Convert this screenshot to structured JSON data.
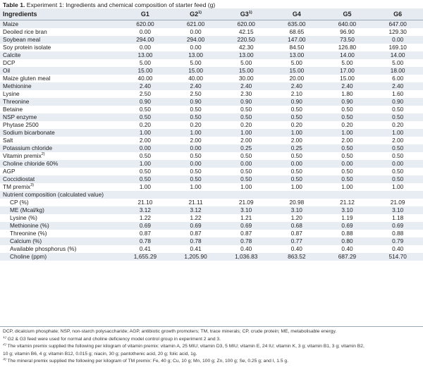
{
  "caption": {
    "label": "Table 1.",
    "text": " Experiment 1: Ingredients and chemical composition of starter feed (g)"
  },
  "columns": [
    {
      "label": "Ingredients",
      "sup": ""
    },
    {
      "label": "G1",
      "sup": ""
    },
    {
      "label": "G2",
      "sup": "1)"
    },
    {
      "label": "G3",
      "sup": "1)"
    },
    {
      "label": "G4",
      "sup": ""
    },
    {
      "label": "G5",
      "sup": ""
    },
    {
      "label": "G6",
      "sup": ""
    }
  ],
  "rows": [
    {
      "label": "Maize",
      "sup": "",
      "indent": false,
      "values": [
        "620.00",
        "621.00",
        "620.00",
        "635.00",
        "640.00",
        "647.00"
      ]
    },
    {
      "label": "Deoiled rice bran",
      "sup": "",
      "indent": false,
      "values": [
        "0.00",
        "0.00",
        "42.15",
        "68.65",
        "96.90",
        "129.30"
      ]
    },
    {
      "label": "Soybean meal",
      "sup": "",
      "indent": false,
      "values": [
        "294.00",
        "294.00",
        "220.50",
        "147.00",
        "73.50",
        "0.00"
      ]
    },
    {
      "label": "Soy protein isolate",
      "sup": "",
      "indent": false,
      "values": [
        "0.00",
        "0.00",
        "42.30",
        "84.50",
        "126.80",
        "169.10"
      ]
    },
    {
      "label": "Calcite",
      "sup": "",
      "indent": false,
      "values": [
        "13.00",
        "13.00",
        "13.00",
        "13.00",
        "14.00",
        "14.00"
      ]
    },
    {
      "label": "DCP",
      "sup": "",
      "indent": false,
      "values": [
        "5.00",
        "5.00",
        "5.00",
        "5.00",
        "5.00",
        "5.00"
      ]
    },
    {
      "label": "Oil",
      "sup": "",
      "indent": false,
      "values": [
        "15.00",
        "15.00",
        "15.00",
        "15.00",
        "17.00",
        "18.00"
      ]
    },
    {
      "label": "Maize gluten meal",
      "sup": "",
      "indent": false,
      "values": [
        "40.00",
        "40.00",
        "30.00",
        "20.00",
        "15.00",
        "6.00"
      ]
    },
    {
      "label": "Methionine",
      "sup": "",
      "indent": false,
      "values": [
        "2.40",
        "2.40",
        "2.40",
        "2.40",
        "2.40",
        "2.40"
      ]
    },
    {
      "label": "Lysine",
      "sup": "",
      "indent": false,
      "values": [
        "2.50",
        "2.50",
        "2.30",
        "2.10",
        "1.80",
        "1.60"
      ]
    },
    {
      "label": "Threonine",
      "sup": "",
      "indent": false,
      "values": [
        "0.90",
        "0.90",
        "0.90",
        "0.90",
        "0.90",
        "0.90"
      ]
    },
    {
      "label": "Betaine",
      "sup": "",
      "indent": false,
      "values": [
        "0.50",
        "0.50",
        "0.50",
        "0.50",
        "0.50",
        "0.50"
      ]
    },
    {
      "label": "NSP enzyme",
      "sup": "",
      "indent": false,
      "values": [
        "0.50",
        "0.50",
        "0.50",
        "0.50",
        "0.50",
        "0.50"
      ]
    },
    {
      "label": "Phytase 2500",
      "sup": "",
      "indent": false,
      "values": [
        "0.20",
        "0.20",
        "0.20",
        "0.20",
        "0.20",
        "0.20"
      ]
    },
    {
      "label": "Sodium bicarbonate",
      "sup": "",
      "indent": false,
      "values": [
        "1.00",
        "1.00",
        "1.00",
        "1.00",
        "1.00",
        "1.00"
      ]
    },
    {
      "label": "Salt",
      "sup": "",
      "indent": false,
      "values": [
        "2.00",
        "2.00",
        "2.00",
        "2.00",
        "2.00",
        "2.00"
      ]
    },
    {
      "label": "Potassium chloride",
      "sup": "",
      "indent": false,
      "values": [
        "0.00",
        "0.00",
        "0.25",
        "0.25",
        "0.50",
        "0.50"
      ]
    },
    {
      "label": "Vitamin premix",
      "sup": "2)",
      "indent": false,
      "values": [
        "0.50",
        "0.50",
        "0.50",
        "0.50",
        "0.50",
        "0.50"
      ]
    },
    {
      "label": "Choline chloride 60%",
      "sup": "",
      "indent": false,
      "values": [
        "1.00",
        "0.00",
        "0.00",
        "0.00",
        "0.00",
        "0.00"
      ]
    },
    {
      "label": "AGP",
      "sup": "",
      "indent": false,
      "values": [
        "0.50",
        "0.50",
        "0.50",
        "0.50",
        "0.50",
        "0.50"
      ]
    },
    {
      "label": "Coccidiostat",
      "sup": "",
      "indent": false,
      "values": [
        "0.50",
        "0.50",
        "0.50",
        "0.50",
        "0.50",
        "0.50"
      ]
    },
    {
      "label": "TM premix",
      "sup": "3)",
      "indent": false,
      "values": [
        "1.00",
        "1.00",
        "1.00",
        "1.00",
        "1.00",
        "1.00"
      ]
    },
    {
      "label": "Nutrient composition (calculated value)",
      "sup": "",
      "indent": false,
      "values": [
        "",
        "",
        "",
        "",
        "",
        ""
      ]
    },
    {
      "label": "CP (%)",
      "sup": "",
      "indent": true,
      "values": [
        "21.10",
        "21.11",
        "21.09",
        "20.98",
        "21.12",
        "21.09"
      ]
    },
    {
      "label": "ME (Mcal/kg)",
      "sup": "",
      "indent": true,
      "values": [
        "3.12",
        "3.12",
        "3.10",
        "3.10",
        "3.10",
        "3.10"
      ]
    },
    {
      "label": "Lysine (%)",
      "sup": "",
      "indent": true,
      "values": [
        "1.22",
        "1.22",
        "1.21",
        "1.20",
        "1.19",
        "1.18"
      ]
    },
    {
      "label": "Methionine (%)",
      "sup": "",
      "indent": true,
      "values": [
        "0.69",
        "0.69",
        "0.69",
        "0.68",
        "0.69",
        "0.69"
      ]
    },
    {
      "label": "Threonine (%)",
      "sup": "",
      "indent": true,
      "values": [
        "0.87",
        "0.87",
        "0.87",
        "0.87",
        "0.88",
        "0.88"
      ]
    },
    {
      "label": "Calcium (%)",
      "sup": "",
      "indent": true,
      "values": [
        "0.78",
        "0.78",
        "0.78",
        "0.77",
        "0.80",
        "0.79"
      ]
    },
    {
      "label": "Available phosphorus (%)",
      "sup": "",
      "indent": true,
      "values": [
        "0.41",
        "0.41",
        "0.40",
        "0.40",
        "0.40",
        "0.40"
      ]
    },
    {
      "label": "Choline (ppm)",
      "sup": "",
      "indent": true,
      "values": [
        "1,655.29",
        "1,205.90",
        "1,036.83",
        "863.52",
        "687.29",
        "514.70"
      ]
    }
  ],
  "notes": [
    {
      "sup": "",
      "text": "DCP, dicalcium phosphate; NSP, non-starch polysaccharide; AGP, antibiotic growth promoters; TM, trace minerals; CP, crude protein; ME, metabolisable energy."
    },
    {
      "sup": "1)",
      "text": " G2 & G3 feed were used for normal and choline deficiency model control group in experiment 2 and 3."
    },
    {
      "sup": "2)",
      "text": " The vitamin premix supplied the following per kilogram of vitamin premix: vitamin A, 25 MIU; vitamin D3, 5 MIU; vitamin E, 24 IU; vitamin K, 3 g; vitamin B1, 3 g; vitamin B2,"
    },
    {
      "sup": "",
      "text": "10 g; vitamin B6, 4 g; vitamin B12, 0.015 g; niacin, 30 g; pantothenic acid, 20 g; folic acid, 1g."
    },
    {
      "sup": "3)",
      "text": " The mineral premix supplied the following per kilogram of TM premix: Fe, 40 g; Cu, 10 g; Mn, 100 g; Zn, 100 g; Se, 0.25 g; and I, 1.5 g."
    }
  ]
}
